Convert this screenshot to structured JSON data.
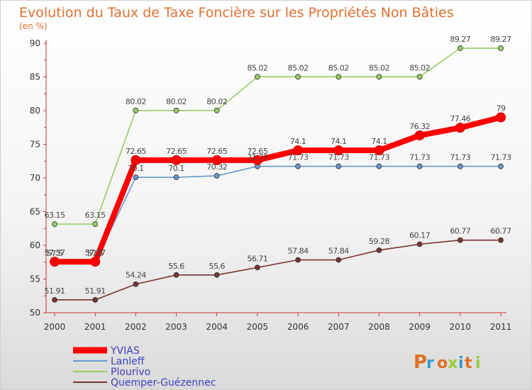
{
  "chart_data": {
    "type": "line",
    "title": "Evolution du Taux de Taxe Foncière sur les Propriétés Non Bâties",
    "subtitle": "(en %)",
    "x": [
      "2000",
      "2001",
      "2002",
      "2003",
      "2004",
      "2005",
      "2006",
      "2007",
      "2008",
      "2009",
      "2010",
      "2011"
    ],
    "ylim": [
      50,
      90
    ],
    "yticks": [
      50,
      55,
      60,
      65,
      70,
      75,
      80,
      85,
      90
    ],
    "grid": false,
    "legend_position": "bottom-left",
    "series": [
      {
        "name": "YVIAS",
        "color": "#ff0000",
        "values": [
          57.57,
          57.57,
          72.65,
          72.65,
          72.65,
          72.65,
          74.1,
          74.1,
          74.1,
          76.32,
          77.46,
          79
        ],
        "labels": [
          "57.57",
          "57.57",
          "72.65",
          "72.65",
          "72.65",
          "72.65",
          "74.1",
          "74.1",
          "74.1",
          "76.32",
          "77.46",
          "79"
        ]
      },
      {
        "name": "Lanleff",
        "color": "#6699cc",
        "values": [
          57.5,
          57.5,
          70.1,
          70.1,
          70.32,
          71.73,
          71.73,
          71.73,
          71.73,
          71.73,
          71.73,
          71.73
        ],
        "labels": [
          "57.5",
          "57.5",
          "70.1",
          "70.1",
          "70.32",
          "71.73",
          "71.73",
          "71.73",
          "71.73",
          "71.73",
          "71.73",
          "71.73"
        ]
      },
      {
        "name": "Plourivo",
        "color": "#99cc66",
        "values": [
          63.15,
          63.15,
          80.02,
          80.02,
          80.02,
          85.02,
          85.02,
          85.02,
          85.02,
          85.02,
          89.27,
          89.27
        ],
        "labels": [
          "63.15",
          "63.15",
          "80.02",
          "80.02",
          "80.02",
          "85.02",
          "85.02",
          "85.02",
          "85.02",
          "85.02",
          "89.27",
          "89.27"
        ]
      },
      {
        "name": "Quemper-Guézennec",
        "color": "#773333",
        "values": [
          51.91,
          51.91,
          54.24,
          55.6,
          55.6,
          56.71,
          57.84,
          57.84,
          59.28,
          60.17,
          60.77,
          60.77
        ],
        "labels": [
          "51.91",
          "51.91",
          "54.24",
          "55.6",
          "55.6",
          "56.71",
          "57.84",
          "57.84",
          "59.28",
          "60.17",
          "60.77",
          "60.77"
        ]
      }
    ]
  },
  "logo": {
    "text": "Proxiti"
  }
}
